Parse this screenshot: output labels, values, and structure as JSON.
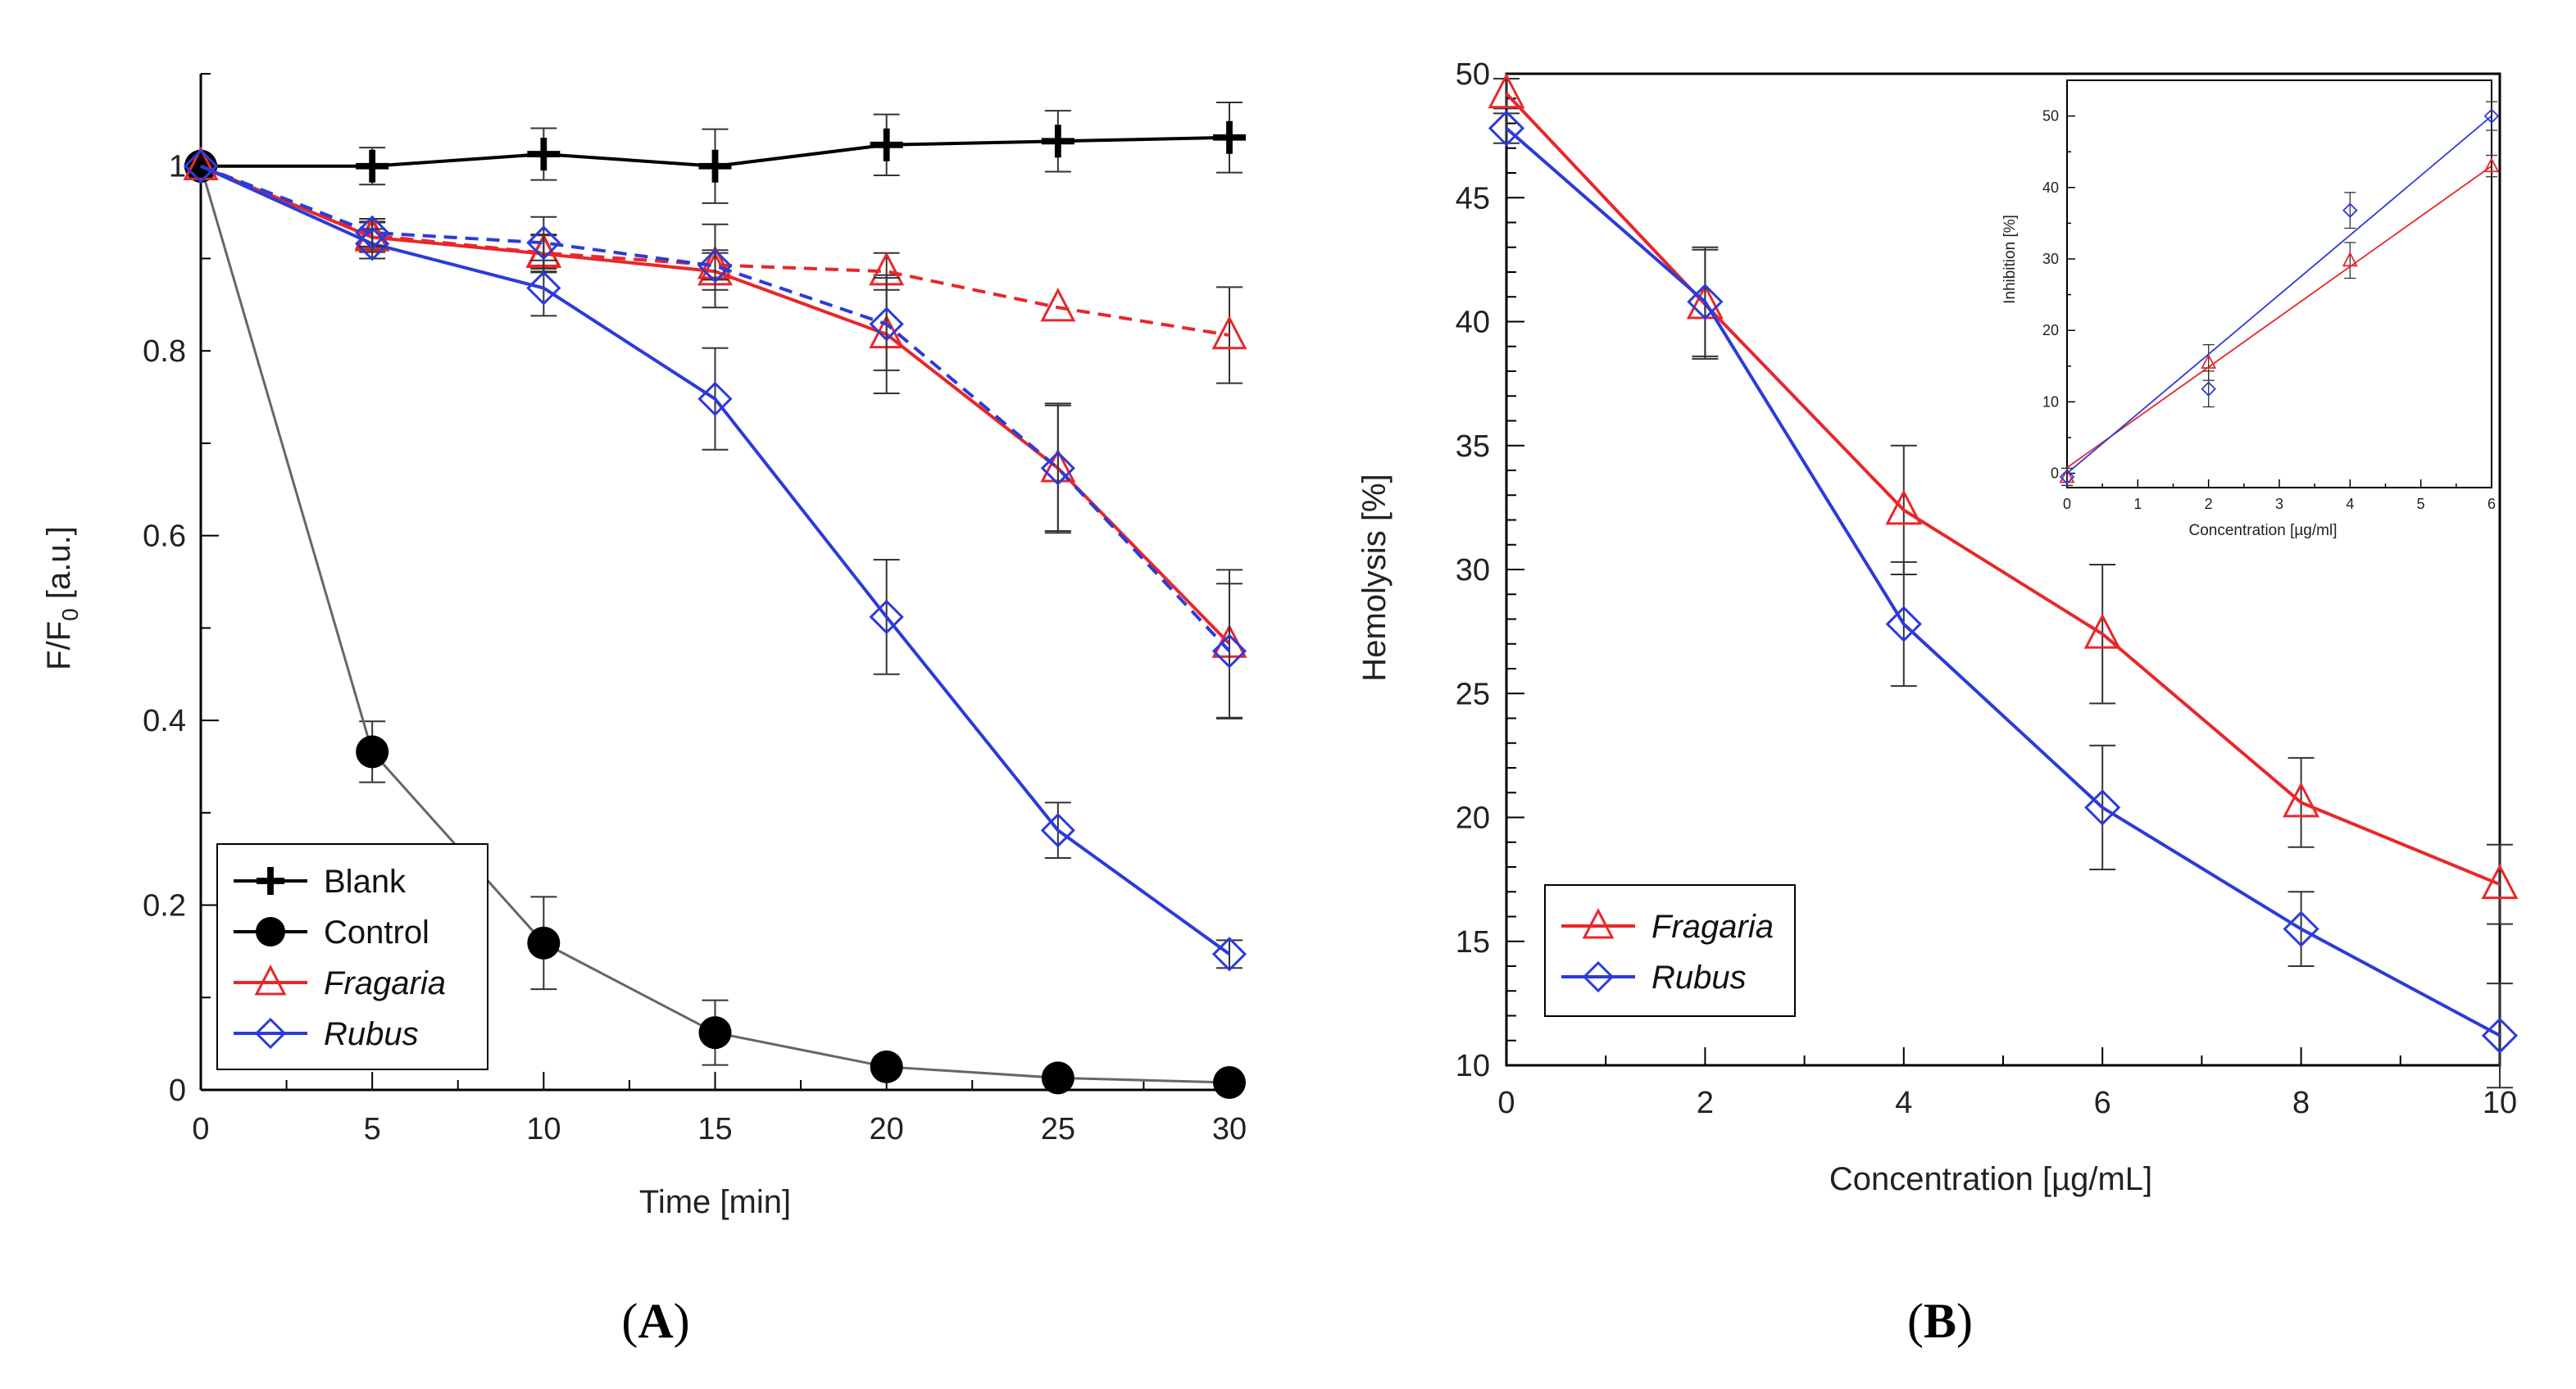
{
  "chart_data": [
    {
      "panel": "A",
      "type": "line",
      "xlabel": "Time [min]",
      "ylabel": "F/F0 [a.u.]",
      "ylabel_main": "F/F",
      "ylabel_sub": "0",
      "ylabel_unit": " [a.u.]",
      "xlim": [
        0,
        30
      ],
      "ylim": [
        0,
        1.1
      ],
      "xticks": [
        "0",
        "5",
        "10",
        "15",
        "20",
        "25",
        "30"
      ],
      "yticks": [
        "0",
        "0.2",
        "0.4",
        "0.6",
        "0.8",
        "1"
      ],
      "x": [
        0,
        5,
        10,
        15,
        20,
        25,
        30
      ],
      "series": [
        {
          "name": "Blank",
          "color": "#000000",
          "marker": "plus",
          "dash": false,
          "values": [
            1.0,
            1.0,
            1.013,
            1.0,
            1.023,
            1.027,
            1.031
          ],
          "errors": [
            0,
            0.02,
            0.028,
            0.04,
            0.033,
            0.033,
            0.038
          ]
        },
        {
          "name": "Control",
          "color": "#555555",
          "marker": "circle",
          "dash": false,
          "values": [
            1.0,
            0.366,
            0.159,
            0.062,
            0.025,
            0.013,
            0.008
          ],
          "errors": [
            0,
            0.033,
            0.05,
            0.035,
            0,
            0,
            0
          ]
        },
        {
          "name": "Fragaria",
          "color": "#e8272a",
          "marker": "triangle",
          "dash": false,
          "values": [
            1.0,
            0.923,
            0.905,
            0.886,
            0.818,
            0.673,
            0.483
          ],
          "errors": [
            0,
            0.016,
            0.02,
            0.02,
            0.064,
            0.068,
            0.08
          ]
        },
        {
          "name": "Fragaria",
          "color": "#e8272a",
          "marker": "triangle",
          "dash": true,
          "values": [
            1.0,
            0.925,
            0.906,
            0.893,
            0.886,
            0.847,
            0.817
          ],
          "errors": [
            0,
            0.015,
            0.02,
            0.016,
            0.02,
            0,
            0.052
          ]
        },
        {
          "name": "Rubus",
          "color": "#2c3bd8",
          "marker": "diamond",
          "dash": false,
          "values": [
            1.0,
            0.916,
            0.868,
            0.748,
            0.512,
            0.281,
            0.147
          ],
          "errors": [
            0,
            0.016,
            0.03,
            0.055,
            0.062,
            0.03,
            0.015
          ]
        },
        {
          "name": "Rubus",
          "color": "#2c3bd8",
          "marker": "diamond",
          "dash": true,
          "values": [
            1.0,
            0.928,
            0.917,
            0.892,
            0.829,
            0.673,
            0.475
          ],
          "errors": [
            0,
            0.015,
            0.028,
            0.045,
            0.05,
            0.07,
            0.073
          ]
        }
      ],
      "legend": [
        {
          "label": "Blank",
          "italic": false
        },
        {
          "label": "Control",
          "italic": false
        },
        {
          "label": "Fragaria",
          "italic": true
        },
        {
          "label": "Rubus",
          "italic": true
        }
      ],
      "legend_position": "bottom-left"
    },
    {
      "panel": "B",
      "type": "line",
      "xlabel": "Concentration [µg/mL]",
      "ylabel": "Hemolysis [%]",
      "xlim": [
        0,
        10
      ],
      "ylim": [
        10,
        50
      ],
      "xticks": [
        "0",
        "2",
        "4",
        "6",
        "8",
        "10"
      ],
      "yticks": [
        "10",
        "15",
        "20",
        "25",
        "30",
        "35",
        "40",
        "45",
        "50"
      ],
      "x": [
        0,
        2,
        4,
        6,
        8,
        10
      ],
      "series": [
        {
          "name": "Fragaria",
          "color": "#e8272a",
          "marker": "triangle",
          "values": [
            49.2,
            40.7,
            32.4,
            27.4,
            20.6,
            17.3
          ],
          "errors": [
            0.6,
            2.2,
            2.6,
            2.8,
            1.8,
            1.6
          ]
        },
        {
          "name": "Rubus",
          "color": "#2c3bd8",
          "marker": "diamond",
          "values": [
            47.8,
            40.8,
            27.8,
            20.4,
            15.5,
            11.2
          ],
          "errors": [
            0.6,
            2.2,
            2.5,
            2.5,
            1.5,
            2.1
          ]
        }
      ],
      "legend": [
        {
          "label": "Fragaria",
          "italic": true
        },
        {
          "label": "Rubus",
          "italic": true
        }
      ],
      "legend_position": "bottom-left",
      "inset": {
        "type": "scatter",
        "xlabel": "Concentration [µg/ml]",
        "ylabel": "Inhibition [%]",
        "xlim": [
          0,
          6
        ],
        "ylim": [
          -2,
          55
        ],
        "xticks": [
          "0",
          "1",
          "2",
          "3",
          "4",
          "5",
          "6"
        ],
        "yticks": [
          "0",
          "10",
          "20",
          "30",
          "40",
          "50"
        ],
        "x": [
          0,
          2,
          4,
          6
        ],
        "series": [
          {
            "name": "Fragaria",
            "color": "#e8272a",
            "marker": "triangle",
            "values": [
              -0.5,
              15.5,
              29.8,
              43.0
            ],
            "errors": [
              1.2,
              2.5,
              2.5,
              1.5
            ],
            "fit": [
              0.8,
              43.0
            ]
          },
          {
            "name": "Rubus",
            "color": "#2c3bd8",
            "marker": "diamond",
            "values": [
              -0.5,
              11.8,
              36.8,
              50.0
            ],
            "errors": [
              1.2,
              2.5,
              2.5,
              2.0
            ],
            "fit": [
              0.0,
              50.0
            ]
          }
        ]
      }
    }
  ],
  "labels": {
    "panel_a": "A",
    "panel_b": "B",
    "paren_open": "(",
    "paren_close": ")"
  }
}
